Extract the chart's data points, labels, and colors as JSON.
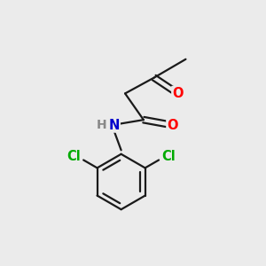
{
  "background_color": "#ebebeb",
  "bond_color": "#1a1a1a",
  "bond_width": 1.6,
  "atom_colors": {
    "O": "#ff0000",
    "N": "#0000cc",
    "Cl": "#00aa00",
    "H": "#888888",
    "C": "#1a1a1a"
  },
  "font_size": 10.5,
  "figsize": [
    3.0,
    3.0
  ],
  "dpi": 100
}
